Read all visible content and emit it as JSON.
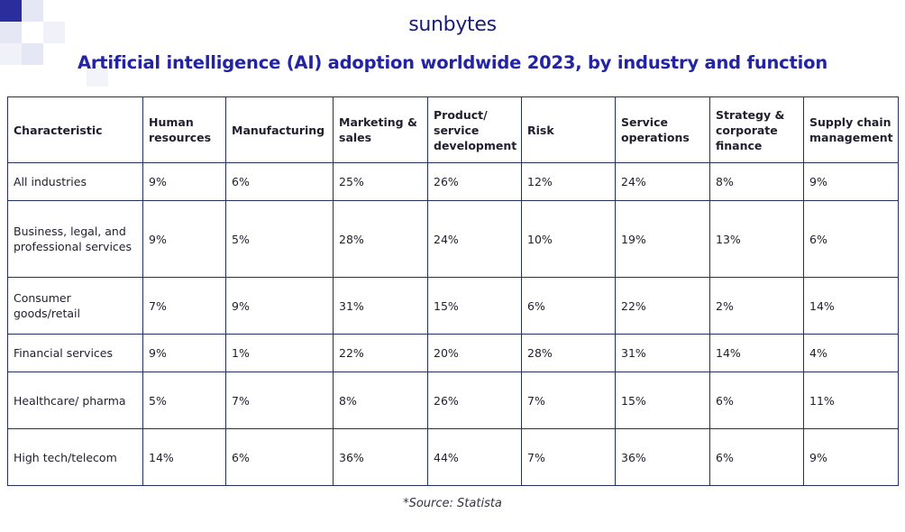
{
  "brand": "sunbytes",
  "title": "Artificial intelligence (AI) adoption worldwide 2023, by industry and function",
  "source": "*Source: Statista",
  "colors": {
    "title": "#2323a8",
    "brand": "#1a1d78",
    "deco_dark": "#2a2d9c",
    "deco_light": "#e6e7f4",
    "border": "#24305e"
  },
  "chart_data": {
    "type": "table",
    "title": "Artificial intelligence (AI) adoption worldwide 2023, by industry and function",
    "columns": [
      "Characteristic",
      "Human resources",
      "Manufacturing",
      "Marketing & sales",
      "Product/ service development",
      "Risk",
      "Service operations",
      "Strategy & corporate finance",
      "Supply chain management"
    ],
    "rows": [
      {
        "label": "All industries",
        "values": [
          "9%",
          "6%",
          "25%",
          "26%",
          "12%",
          "24%",
          "8%",
          "9%"
        ]
      },
      {
        "label": "Business, legal, and professional services",
        "values": [
          "9%",
          "5%",
          "28%",
          "24%",
          "10%",
          "19%",
          "13%",
          "6%"
        ]
      },
      {
        "label": "Consumer goods/retail",
        "values": [
          "7%",
          "9%",
          "31%",
          "15%",
          "6%",
          "22%",
          "2%",
          "14%"
        ]
      },
      {
        "label": "Financial services",
        "values": [
          "9%",
          "1%",
          "22%",
          "20%",
          "28%",
          "31%",
          "14%",
          "4%"
        ]
      },
      {
        "label": "Healthcare/ pharma",
        "values": [
          "5%",
          "7%",
          "8%",
          "26%",
          "7%",
          "15%",
          "6%",
          "11%"
        ]
      },
      {
        "label": "High tech/telecom",
        "values": [
          "14%",
          "6%",
          "36%",
          "44%",
          "7%",
          "36%",
          "6%",
          "9%"
        ]
      }
    ],
    "source": "*Source: Statista"
  }
}
